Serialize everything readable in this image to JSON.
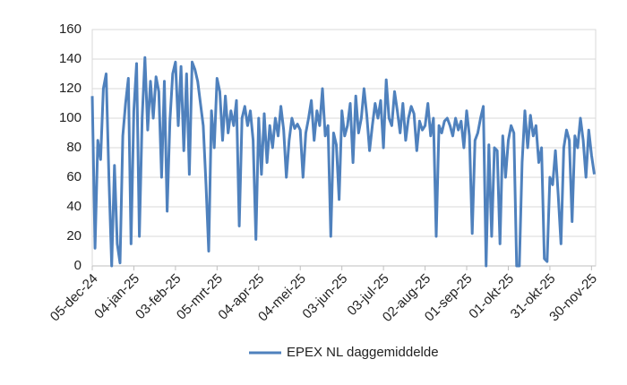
{
  "chart_data": {
    "type": "line",
    "x": [
      "2024-12-05",
      "2024-12-07",
      "2024-12-09",
      "2024-12-11",
      "2024-12-13",
      "2024-12-15",
      "2024-12-17",
      "2024-12-19",
      "2024-12-21",
      "2024-12-23",
      "2024-12-25",
      "2024-12-27",
      "2024-12-29",
      "2024-12-31",
      "2025-01-02",
      "2025-01-04",
      "2025-01-06",
      "2025-01-08",
      "2025-01-10",
      "2025-01-12",
      "2025-01-14",
      "2025-01-16",
      "2025-01-18",
      "2025-01-20",
      "2025-01-22",
      "2025-01-24",
      "2025-01-26",
      "2025-01-28",
      "2025-01-30",
      "2025-02-01",
      "2025-02-03",
      "2025-02-05",
      "2025-02-07",
      "2025-02-09",
      "2025-02-11",
      "2025-02-13",
      "2025-02-15",
      "2025-02-17",
      "2025-02-19",
      "2025-02-21",
      "2025-02-23",
      "2025-02-25",
      "2025-02-27",
      "2025-03-01",
      "2025-03-03",
      "2025-03-05",
      "2025-03-07",
      "2025-03-09",
      "2025-03-11",
      "2025-03-13",
      "2025-03-15",
      "2025-03-17",
      "2025-03-19",
      "2025-03-21",
      "2025-03-23",
      "2025-03-25",
      "2025-03-27",
      "2025-03-29",
      "2025-03-31",
      "2025-04-02",
      "2025-04-04",
      "2025-04-06",
      "2025-04-08",
      "2025-04-10",
      "2025-04-12",
      "2025-04-14",
      "2025-04-16",
      "2025-04-18",
      "2025-04-20",
      "2025-04-22",
      "2025-04-24",
      "2025-04-26",
      "2025-04-28",
      "2025-04-30",
      "2025-05-02",
      "2025-05-04",
      "2025-05-06",
      "2025-05-08",
      "2025-05-10",
      "2025-05-12",
      "2025-05-14",
      "2025-05-16",
      "2025-05-18",
      "2025-05-20",
      "2025-05-22",
      "2025-05-24",
      "2025-05-26",
      "2025-05-28",
      "2025-05-30",
      "2025-06-01",
      "2025-06-03",
      "2025-06-05",
      "2025-06-07",
      "2025-06-09",
      "2025-06-11",
      "2025-06-13",
      "2025-06-15",
      "2025-06-17",
      "2025-06-19",
      "2025-06-21",
      "2025-06-23",
      "2025-06-25",
      "2025-06-27",
      "2025-06-29",
      "2025-07-01",
      "2025-07-03",
      "2025-07-05",
      "2025-07-07",
      "2025-07-09",
      "2025-07-11",
      "2025-07-13",
      "2025-07-15",
      "2025-07-17",
      "2025-07-19",
      "2025-07-21",
      "2025-07-23",
      "2025-07-25",
      "2025-07-27",
      "2025-07-29",
      "2025-07-31",
      "2025-08-02",
      "2025-08-04",
      "2025-08-06",
      "2025-08-08",
      "2025-08-10",
      "2025-08-12",
      "2025-08-14",
      "2025-08-16",
      "2025-08-18",
      "2025-08-20",
      "2025-08-22",
      "2025-08-24",
      "2025-08-26",
      "2025-08-28",
      "2025-08-30",
      "2025-09-01",
      "2025-09-03",
      "2025-09-05",
      "2025-09-07",
      "2025-09-09",
      "2025-09-11",
      "2025-09-13",
      "2025-09-15",
      "2025-09-17",
      "2025-09-19",
      "2025-09-21",
      "2025-09-23",
      "2025-09-25",
      "2025-09-27",
      "2025-09-29",
      "2025-10-01",
      "2025-10-03",
      "2025-10-05",
      "2025-10-07",
      "2025-10-09",
      "2025-10-11",
      "2025-10-13",
      "2025-10-15",
      "2025-10-17",
      "2025-10-19",
      "2025-10-21",
      "2025-10-23",
      "2025-10-25",
      "2025-10-27",
      "2025-10-29",
      "2025-10-31",
      "2025-11-02",
      "2025-11-04",
      "2025-11-06",
      "2025-11-08",
      "2025-11-10",
      "2025-11-12",
      "2025-11-14",
      "2025-11-16",
      "2025-11-18",
      "2025-11-20",
      "2025-11-22",
      "2025-11-24",
      "2025-11-26",
      "2025-11-28",
      "2025-11-30",
      "2025-12-02"
    ],
    "series": [
      {
        "name": "EPEX NL daggemiddelde",
        "color": "#4f81bd",
        "values": [
          115,
          12,
          85,
          72,
          120,
          130,
          60,
          0,
          68,
          15,
          2,
          88,
          110,
          127,
          15,
          105,
          137,
          20,
          100,
          141,
          92,
          125,
          100,
          128,
          118,
          60,
          125,
          37,
          98,
          130,
          138,
          95,
          135,
          78,
          130,
          62,
          138,
          133,
          125,
          110,
          95,
          55,
          10,
          105,
          80,
          127,
          118,
          85,
          115,
          90,
          105,
          95,
          112,
          27,
          100,
          108,
          95,
          105,
          85,
          18,
          100,
          62,
          103,
          70,
          95,
          80,
          100,
          88,
          108,
          92,
          60,
          85,
          100,
          93,
          96,
          92,
          60,
          90,
          100,
          112,
          85,
          105,
          95,
          120,
          88,
          95,
          20,
          90,
          82,
          45,
          105,
          88,
          95,
          110,
          70,
          115,
          90,
          100,
          120,
          102,
          78,
          95,
          110,
          100,
          112,
          80,
          126,
          100,
          95,
          118,
          105,
          90,
          110,
          85,
          100,
          108,
          103,
          78,
          98,
          92,
          95,
          110,
          88,
          100,
          20,
          95,
          90,
          98,
          100,
          95,
          88,
          100,
          92,
          98,
          80,
          105,
          88,
          22,
          85,
          90,
          100,
          108,
          0,
          82,
          20,
          80,
          78,
          15,
          88,
          60,
          85,
          95,
          90,
          0,
          0,
          70,
          105,
          80,
          102,
          88,
          95,
          70,
          80,
          5,
          3,
          60,
          55,
          78,
          48,
          15,
          80,
          92,
          85,
          30,
          88,
          80,
          100,
          85,
          60,
          92,
          75,
          62
        ]
      }
    ],
    "xlim": [
      "2024-12-05",
      "2025-12-03"
    ],
    "xticks": [
      {
        "value": "2024-12-05",
        "label": "05-dec-24"
      },
      {
        "value": "2025-01-04",
        "label": "04-jan-25"
      },
      {
        "value": "2025-02-03",
        "label": "03-feb-25"
      },
      {
        "value": "2025-03-05",
        "label": "05-mrt-25"
      },
      {
        "value": "2025-04-04",
        "label": "04-apr-25"
      },
      {
        "value": "2025-05-04",
        "label": "04-mei-25"
      },
      {
        "value": "2025-06-03",
        "label": "03-jun-25"
      },
      {
        "value": "2025-07-03",
        "label": "03-jul-25"
      },
      {
        "value": "2025-08-02",
        "label": "02-aug-25"
      },
      {
        "value": "2025-09-01",
        "label": "01-sep-25"
      },
      {
        "value": "2025-10-01",
        "label": "01-okt-25"
      },
      {
        "value": "2025-10-31",
        "label": "31-okt-25"
      },
      {
        "value": "2025-11-30",
        "label": "30-nov-25"
      }
    ],
    "ylim": [
      0,
      160
    ],
    "yticks": [
      0,
      20,
      40,
      60,
      80,
      100,
      120,
      140,
      160
    ],
    "grid": true
  }
}
